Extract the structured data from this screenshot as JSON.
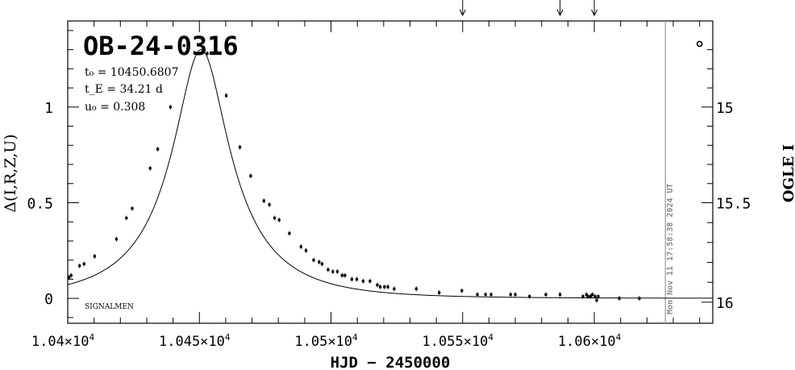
{
  "chart_data": {
    "type": "scatter",
    "title": "OB-24-0316",
    "xlabel": "HJD − 2450000",
    "ylabel_left": "Δ(I,R,Z,U)",
    "ylabel_right": "OGLE I",
    "xlim": [
      10400,
      10645
    ],
    "ylim": [
      -0.13,
      1.45
    ],
    "x_ticks": [
      10400,
      10450,
      10500,
      10550,
      10600
    ],
    "x_tick_mantissas": [
      "1.04×10",
      "1.045×10",
      "1.05×10",
      "1.055×10",
      "1.06×10"
    ],
    "x_tick_exponent": "4",
    "y_ticks": [
      0,
      0.5,
      1
    ],
    "y_tick_labels": [
      "0",
      "0.5",
      "1"
    ],
    "right_axis_ticks": [
      {
        "label": "15",
        "value": 1.0
      },
      {
        "label": "15.5",
        "value": 0.5
      },
      {
        "label": "16",
        "value": -0.02
      }
    ],
    "params": {
      "t0": "t₀ = 10450.6807",
      "tE": "t_E = 34.21 d",
      "u0": "u₀ = 0.308"
    },
    "corner_label": "SIGNALMEN",
    "timestamp": "Mon Nov 11 17:58:38 2024 UT",
    "now_line_x": 10627,
    "arrow_marks_x": [
      10550,
      10587,
      10600
    ],
    "legend_marker_x": 10640,
    "legend_marker_y": 1.33,
    "model": {
      "t0": 10450.6807,
      "tE": 34.21,
      "u0": 0.308,
      "baseline": 0.0
    },
    "series": [
      {
        "name": "",
        "points": [
          {
            "x": 10400.5,
            "y": 0.11
          },
          {
            "x": 10401.3,
            "y": 0.12
          },
          {
            "x": 10404.5,
            "y": 0.17
          },
          {
            "x": 10406.2,
            "y": 0.18
          },
          {
            "x": 10410.2,
            "y": 0.22
          },
          {
            "x": 10418.5,
            "y": 0.31
          },
          {
            "x": 10422.3,
            "y": 0.42
          },
          {
            "x": 10424.5,
            "y": 0.47
          },
          {
            "x": 10431.3,
            "y": 0.68
          },
          {
            "x": 10434.2,
            "y": 0.78
          },
          {
            "x": 10439.0,
            "y": 1.0
          },
          {
            "x": 10453.0,
            "y": 1.28
          },
          {
            "x": 10460.2,
            "y": 1.06
          },
          {
            "x": 10465.4,
            "y": 0.79
          },
          {
            "x": 10469.5,
            "y": 0.64
          },
          {
            "x": 10474.5,
            "y": 0.51
          },
          {
            "x": 10476.6,
            "y": 0.49
          },
          {
            "x": 10478.6,
            "y": 0.42
          },
          {
            "x": 10480.3,
            "y": 0.41
          },
          {
            "x": 10484.2,
            "y": 0.34
          },
          {
            "x": 10488.6,
            "y": 0.27
          },
          {
            "x": 10490.5,
            "y": 0.25
          },
          {
            "x": 10493.4,
            "y": 0.2
          },
          {
            "x": 10495.5,
            "y": 0.19
          },
          {
            "x": 10496.6,
            "y": 0.18
          },
          {
            "x": 10498.9,
            "y": 0.15
          },
          {
            "x": 10500.7,
            "y": 0.14
          },
          {
            "x": 10502.4,
            "y": 0.14
          },
          {
            "x": 10504.2,
            "y": 0.12
          },
          {
            "x": 10505.3,
            "y": 0.12
          },
          {
            "x": 10507.9,
            "y": 0.1
          },
          {
            "x": 10509.8,
            "y": 0.1
          },
          {
            "x": 10512.2,
            "y": 0.09
          },
          {
            "x": 10514.8,
            "y": 0.09
          },
          {
            "x": 10517.6,
            "y": 0.07
          },
          {
            "x": 10518.7,
            "y": 0.06
          },
          {
            "x": 10520.3,
            "y": 0.06
          },
          {
            "x": 10521.6,
            "y": 0.06
          },
          {
            "x": 10524.0,
            "y": 0.05
          },
          {
            "x": 10532.4,
            "y": 0.05
          },
          {
            "x": 10541.1,
            "y": 0.03
          },
          {
            "x": 10549.7,
            "y": 0.04
          },
          {
            "x": 10555.6,
            "y": 0.02
          },
          {
            "x": 10558.7,
            "y": 0.02
          },
          {
            "x": 10560.8,
            "y": 0.02
          },
          {
            "x": 10568.2,
            "y": 0.02
          },
          {
            "x": 10570.0,
            "y": 0.02
          },
          {
            "x": 10575.4,
            "y": 0.01
          },
          {
            "x": 10581.6,
            "y": 0.02
          },
          {
            "x": 10587.0,
            "y": 0.02
          },
          {
            "x": 10595.7,
            "y": 0.01
          },
          {
            "x": 10597.0,
            "y": 0.02
          },
          {
            "x": 10597.6,
            "y": 0.01
          },
          {
            "x": 10598.6,
            "y": 0.01
          },
          {
            "x": 10599.3,
            "y": 0.02
          },
          {
            "x": 10600.3,
            "y": 0.01
          },
          {
            "x": 10600.9,
            "y": -0.01
          },
          {
            "x": 10601.5,
            "y": 0.01
          },
          {
            "x": 10609.5,
            "y": 0.0
          },
          {
            "x": 10617.1,
            "y": 0.0
          }
        ]
      }
    ]
  }
}
